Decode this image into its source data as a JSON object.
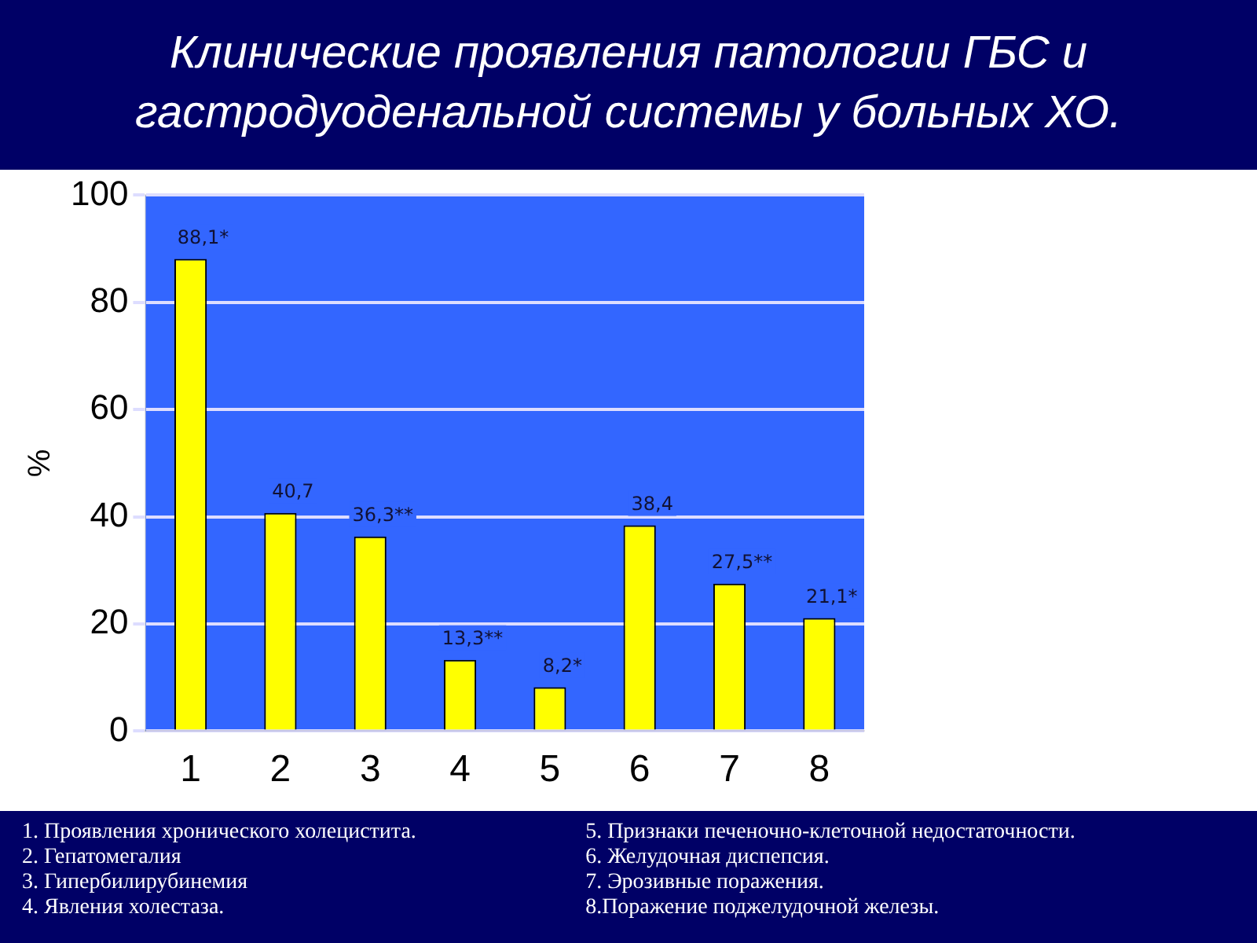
{
  "chart_data": {
    "type": "bar",
    "title": "Клинические проявления патологии ГБС и гастродуоденальной системы у больных ХО.",
    "ylabel": "%",
    "categories": [
      "1",
      "2",
      "3",
      "4",
      "5",
      "6",
      "7",
      "8"
    ],
    "values": [
      88.1,
      40.7,
      36.3,
      13.3,
      8.2,
      38.4,
      27.5,
      21.1
    ],
    "value_labels": [
      "88,1*",
      "40,7",
      "36,3**",
      "13,3**",
      "8,2*",
      "38,4",
      "27,5**",
      "21,1*"
    ],
    "color": "#ffff00",
    "ylim": [
      0,
      100
    ],
    "yticks": [
      0,
      20,
      40,
      60,
      80,
      100
    ],
    "grid": "y",
    "legend": false,
    "annotations": [
      "1. Проявления хронического холецистита.",
      "2. Гепатомегалия",
      "3. Гипербилирубинемия",
      "4. Явления холестаза.",
      "5. Признаки печеночно-клеточной недостаточности.",
      "6. Желудочная диспепсия.",
      "7. Эрозивные поражения.",
      "8.Поражение поджелудочной железы."
    ]
  }
}
